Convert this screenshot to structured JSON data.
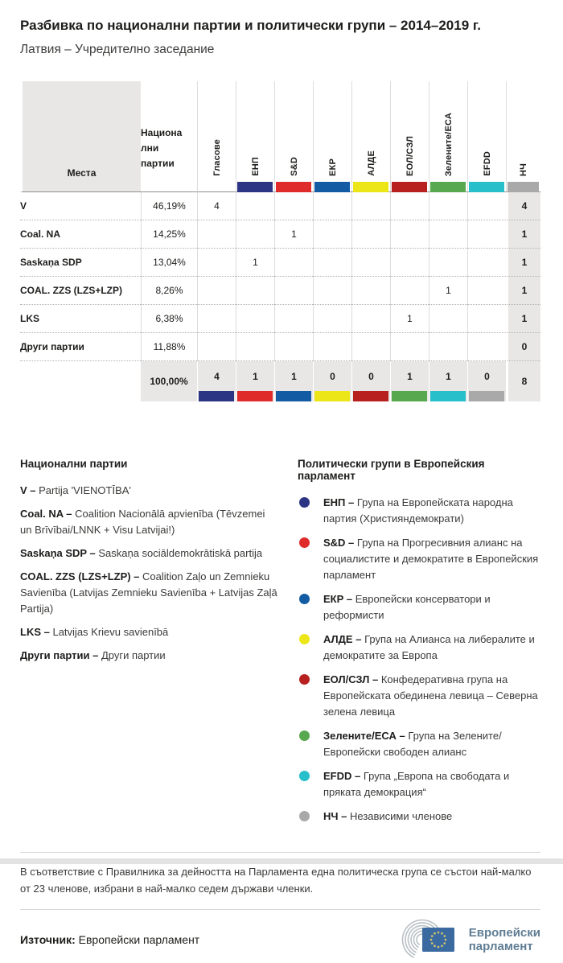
{
  "header": {
    "title": "Разбивка по национални партии и политически групи – 2014–2019 г.",
    "subtitle": "Латвия – Учредително заседание"
  },
  "table": {
    "header_label_lines": [
      "Национа",
      "лни",
      "партии"
    ],
    "votes_label": "Гласове",
    "seats_label": "Места",
    "groups": [
      {
        "abbr": "ЕНП",
        "color": "#2c3584"
      },
      {
        "abbr": "S&D",
        "color": "#e02b2b"
      },
      {
        "abbr": "ЕКР",
        "color": "#135ca4"
      },
      {
        "abbr": "АЛДЕ",
        "color": "#ece619"
      },
      {
        "abbr": "ЕОЛ/СЗЛ",
        "color": "#b7201e"
      },
      {
        "abbr": "Зелените/ЕСА",
        "color": "#57a84e"
      },
      {
        "abbr": "EFDD",
        "color": "#27bfca"
      },
      {
        "abbr": "НЧ",
        "color": "#a9a9a9"
      }
    ],
    "rows": [
      {
        "party": "V",
        "votes": "46,19%",
        "seats_by_group": [
          "4",
          "",
          "",
          "",
          "",
          "",
          "",
          ""
        ],
        "seats": "4"
      },
      {
        "party": "Coal. NA",
        "votes": "14,25%",
        "seats_by_group": [
          "",
          "",
          "1",
          "",
          "",
          "",
          "",
          ""
        ],
        "seats": "1"
      },
      {
        "party": "Saskaņa SDP",
        "votes": "13,04%",
        "seats_by_group": [
          "",
          "1",
          "",
          "",
          "",
          "",
          "",
          ""
        ],
        "seats": "1"
      },
      {
        "party": "COAL. ZZS (LZS+LZP)",
        "votes": "8,26%",
        "seats_by_group": [
          "",
          "",
          "",
          "",
          "",
          "",
          "1",
          ""
        ],
        "seats": "1"
      },
      {
        "party": "LKS",
        "votes": "6,38%",
        "seats_by_group": [
          "",
          "",
          "",
          "",
          "",
          "1",
          "",
          ""
        ],
        "seats": "1"
      },
      {
        "party": "Други партии",
        "votes": "11,88%",
        "seats_by_group": [
          "",
          "",
          "",
          "",
          "",
          "",
          "",
          ""
        ],
        "seats": "0"
      }
    ],
    "totals": {
      "votes": "100,00%",
      "seats_by_group": [
        "4",
        "1",
        "1",
        "0",
        "0",
        "1",
        "1",
        "0"
      ],
      "seats": "8"
    }
  },
  "chart_data": {
    "type": "table",
    "title": "Разбивка по национални партии и политически групи – 2014–2019 г.",
    "subtitle": "Латвия – Учредително заседание",
    "columns": [
      "Гласове",
      "ЕНП",
      "S&D",
      "ЕКР",
      "АЛДЕ",
      "ЕОЛ/СЗЛ",
      "Зелените/ЕСА",
      "EFDD",
      "НЧ",
      "Места"
    ],
    "rows": [
      {
        "party": "V",
        "votes_pct": 46.19,
        "seats_by_group": [
          4,
          0,
          0,
          0,
          0,
          0,
          0,
          0
        ],
        "total_seats": 4
      },
      {
        "party": "Coal. NA",
        "votes_pct": 14.25,
        "seats_by_group": [
          0,
          0,
          1,
          0,
          0,
          0,
          0,
          0
        ],
        "total_seats": 1
      },
      {
        "party": "Saskaņa SDP",
        "votes_pct": 13.04,
        "seats_by_group": [
          0,
          1,
          0,
          0,
          0,
          0,
          0,
          0
        ],
        "total_seats": 1
      },
      {
        "party": "COAL. ZZS (LZS+LZP)",
        "votes_pct": 8.26,
        "seats_by_group": [
          0,
          0,
          0,
          0,
          0,
          0,
          1,
          0
        ],
        "total_seats": 1
      },
      {
        "party": "LKS",
        "votes_pct": 6.38,
        "seats_by_group": [
          0,
          0,
          0,
          0,
          0,
          1,
          0,
          0
        ],
        "total_seats": 1
      },
      {
        "party": "Други партии",
        "votes_pct": 11.88,
        "seats_by_group": [
          0,
          0,
          0,
          0,
          0,
          0,
          0,
          0
        ],
        "total_seats": 0
      }
    ],
    "totals": {
      "votes_pct": 100.0,
      "seats_by_group": [
        4,
        1,
        1,
        0,
        0,
        1,
        1,
        0
      ],
      "total_seats": 8
    }
  },
  "legend_parties": {
    "title": "Национални  партии",
    "items": [
      {
        "abbr": "V",
        "desc": "Partija 'VIENOTĪBA'"
      },
      {
        "abbr": "Coal. NA",
        "desc": "Coalition Nacionālā apvienība (Tēvzemei un Brīvībai/LNNK + Visu Latvijai!)"
      },
      {
        "abbr": "Saskaņa SDP",
        "desc": "Saskaņa sociāldemokrātiskā partija"
      },
      {
        "abbr": "COAL. ZZS (LZS+LZP)",
        "desc": "Coalition Zaļo un Zemnieku Savienība (Latvijas Zemnieku Savienība + Latvijas Zaļā Partija)"
      },
      {
        "abbr": "LKS",
        "desc": "Latvijas Krievu savienībā"
      },
      {
        "abbr": "Други партии",
        "desc": "Други партии"
      }
    ]
  },
  "legend_groups": {
    "title": "Политически групи в Европейския парламент",
    "items": [
      {
        "abbr": "ЕНП",
        "color": "#2c3584",
        "desc": "Група на Европейската народна партия (Християндемократи)"
      },
      {
        "abbr": "S&D",
        "color": "#e02b2b",
        "desc": "Група на Прогресивния алианс на социалистите и демократите в Европейския парламент"
      },
      {
        "abbr": "ЕКР",
        "color": "#135ca4",
        "desc": "Европейски консерватори и реформисти"
      },
      {
        "abbr": "АЛДЕ",
        "color": "#ece619",
        "desc": "Група на Алианса на либералите и демократите за Европа"
      },
      {
        "abbr": "ЕОЛ/СЗЛ",
        "color": "#b7201e",
        "desc": "Конфедеративна група на Европейската обединена левица – Северна зелена левица"
      },
      {
        "abbr": "Зелените/ЕСА",
        "color": "#57a84e",
        "desc": "Група на Зелените/Европейски свободен алианс"
      },
      {
        "abbr": "EFDD",
        "color": "#27bfca",
        "desc": "Група „Европа на свободата и пряката демокрация“"
      },
      {
        "abbr": "НЧ",
        "color": "#a9a9a9",
        "desc": "Независими членове"
      }
    ]
  },
  "footnote": "В съответствие с Правилника за дейността на Парламента една политическа група се състои най-малко от 23 членове, избрани в най-малко седем държави членки.",
  "source": {
    "label": "Източник:",
    "value": "Европейски парламент"
  },
  "logo": {
    "line1": "Европейски",
    "line2": "парламент",
    "text_color": "#5f7d94",
    "flag_color": "#3b6aa0",
    "star_color": "#d8ca6b",
    "arc_color": "#b9c0c5"
  }
}
